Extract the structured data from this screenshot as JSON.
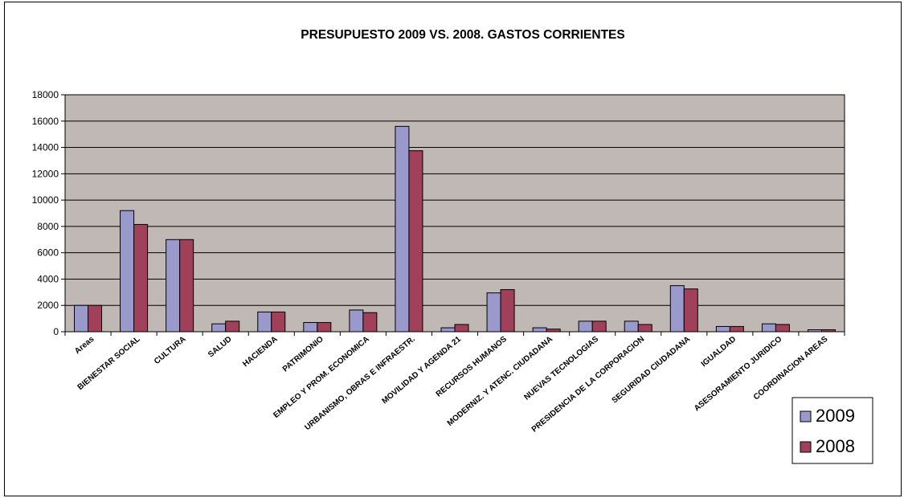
{
  "chart_data": {
    "type": "bar",
    "title": "PRESUPUESTO 2009 VS. 2008. GASTOS CORRIENTES",
    "xlabel": "",
    "ylabel": "",
    "ylim": [
      0,
      18000
    ],
    "yticks": [
      0,
      2000,
      4000,
      6000,
      8000,
      10000,
      12000,
      14000,
      16000,
      18000
    ],
    "grid": true,
    "legend_position": "right",
    "categories": [
      "Areas",
      "BIENESTAR SOCIAL",
      "CULTURA",
      "SALUD",
      "HACIENDA",
      "PATRIMONIO",
      "EMPLEO Y PROM. ECONOMICA",
      "URBANISMO, OBRAS E INFRAESTR.",
      "MOVILIDAD Y AGENDA 21",
      "RECURSOS HUMANOS",
      "MODERNIZ. Y ATENC. CIUDADANA",
      "NUEVAS TECNOLOGIAS",
      "PRESIDENCIA DE LA CORPORACION",
      "SEGURIDAD CIUDADANA",
      "IGUALDAD",
      "ASESORAMIENTO JURIDICO",
      "COORDINACION AREAS"
    ],
    "series": [
      {
        "name": "2009",
        "color": "#9999cc",
        "values": [
          2000,
          9200,
          7000,
          600,
          1500,
          700,
          1650,
          15600,
          300,
          2950,
          300,
          800,
          800,
          3500,
          400,
          600,
          150
        ]
      },
      {
        "name": "2008",
        "color": "#a0405a",
        "values": [
          2000,
          8150,
          7000,
          800,
          1500,
          700,
          1450,
          13750,
          550,
          3200,
          200,
          800,
          550,
          3250,
          400,
          550,
          150
        ]
      }
    ],
    "plot_background": "#c0b8b4"
  }
}
